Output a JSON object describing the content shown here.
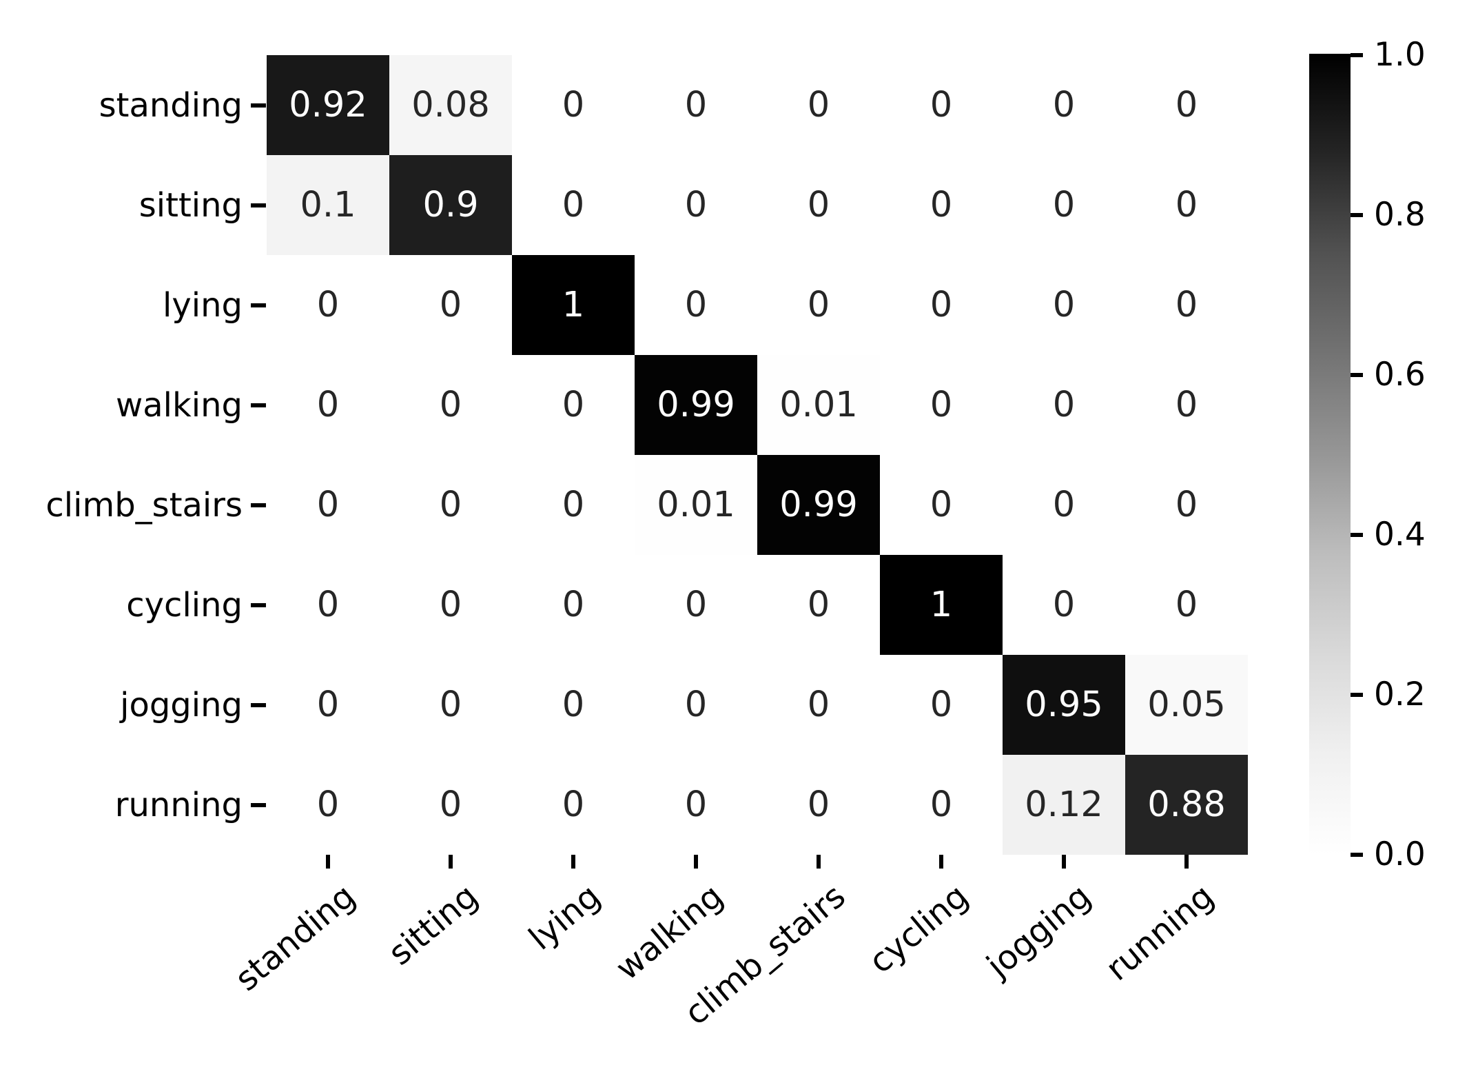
{
  "chart_data": {
    "type": "heatmap",
    "title": "",
    "xlabel": "",
    "ylabel": "",
    "categories": [
      "standing",
      "sitting",
      "lying",
      "walking",
      "climb_stairs",
      "cycling",
      "jogging",
      "running"
    ],
    "matrix": [
      [
        0.92,
        0.08,
        0,
        0,
        0,
        0,
        0,
        0
      ],
      [
        0.1,
        0.9,
        0,
        0,
        0,
        0,
        0,
        0
      ],
      [
        0,
        0,
        1,
        0,
        0,
        0,
        0,
        0
      ],
      [
        0,
        0,
        0,
        0.99,
        0.01,
        0,
        0,
        0
      ],
      [
        0,
        0,
        0,
        0.01,
        0.99,
        0,
        0,
        0
      ],
      [
        0,
        0,
        0,
        0,
        0,
        1,
        0,
        0
      ],
      [
        0,
        0,
        0,
        0,
        0,
        0,
        0.95,
        0.05
      ],
      [
        0,
        0,
        0,
        0,
        0,
        0,
        0.12,
        0.88
      ]
    ],
    "annotated": true,
    "value_range": [
      0,
      1
    ],
    "grid": false,
    "x_tick_rotation_deg": 40,
    "colorbar": {
      "position": "right",
      "colormap": "Greys",
      "min": 0,
      "max": 1,
      "tick_labels": [
        "1.0",
        "0.8",
        "0.6",
        "0.4",
        "0.2",
        "0.0"
      ]
    }
  },
  "colors": {
    "background": "#ffffff",
    "axis_text": "#000000",
    "cell_text_light": "#ffffff",
    "cell_text_dark": "#262626",
    "greys_stops": [
      255,
      240,
      217,
      189,
      150,
      115,
      82,
      37,
      0
    ]
  },
  "layout_values": {
    "rows": 8,
    "cols": 8
  }
}
